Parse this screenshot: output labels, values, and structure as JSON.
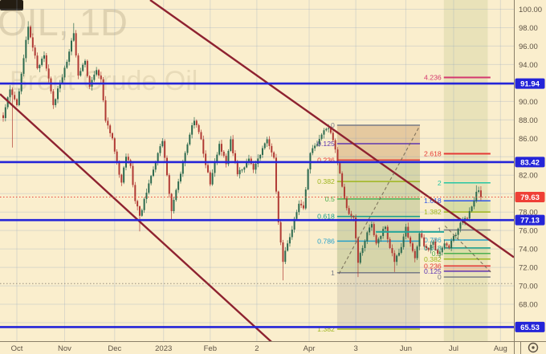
{
  "app": {
    "watermark_line1": "OIL, 1D",
    "watermark_line2": "Brent Crude Oil"
  },
  "colors": {
    "bg": "#faeecd",
    "grid": "rgba(140,160,190,0.28)",
    "up": "#2d6a4f",
    "down": "#b03a34",
    "blue_line": "#2424d8",
    "badge_blue": "#2424d8",
    "badge_red": "#ef4036",
    "maroon": "#8e2230",
    "axis_text": "#5d5244",
    "axis_line": "#8a7f68",
    "dotted_red": "#e8443a",
    "dotted_gray": "#97907e",
    "watermark1": "rgba(90,70,30,0.16)",
    "watermark2": "rgba(90,70,30,0.11)",
    "corner_logo": "#241d12",
    "badge_text": "#ffffff"
  },
  "chart_data": {
    "type": "candlestick",
    "symbol": "OIL",
    "interval": "1D",
    "name": "Brent Crude Oil",
    "ylim": [
      64,
      101
    ],
    "bars": 211,
    "grid_prices": [
      100,
      98,
      96,
      94,
      92,
      90,
      88,
      86,
      84,
      82,
      80,
      78,
      76,
      74,
      72,
      70,
      68,
      66
    ],
    "price_ticks": [
      {
        "label": "100.00",
        "price": 100
      },
      {
        "label": "98.00",
        "price": 98
      },
      {
        "label": "96.00",
        "price": 96
      },
      {
        "label": "94.00",
        "price": 94
      },
      {
        "label": "90.00",
        "price": 90
      },
      {
        "label": "88.00",
        "price": 88
      },
      {
        "label": "86.00",
        "price": 86
      },
      {
        "label": "82.00",
        "price": 82
      },
      {
        "label": "78.00",
        "price": 78
      },
      {
        "label": "76.00",
        "price": 76
      },
      {
        "label": "74.00",
        "price": 74
      },
      {
        "label": "72.00",
        "price": 72
      },
      {
        "label": "70.00",
        "price": 70
      },
      {
        "label": "68.00",
        "price": 68
      }
    ],
    "time_ticks": [
      {
        "label": "Oct",
        "bar": 6
      },
      {
        "label": "Nov",
        "bar": 27
      },
      {
        "label": "Dec",
        "bar": 49
      },
      {
        "label": "2023",
        "bar": 70.5
      },
      {
        "label": "Feb",
        "bar": 91
      },
      {
        "label": "2",
        "bar": 111.5
      },
      {
        "label": "Apr",
        "bar": 134.5
      },
      {
        "label": "3",
        "bar": 155
      },
      {
        "label": "Jun",
        "bar": 177
      },
      {
        "label": "Jul",
        "bar": 198
      },
      {
        "label": "Aug",
        "bar": 218.6
      }
    ],
    "last_price": 79.63,
    "last_price_direction": "down",
    "gray_dotted_price": 70.25,
    "blue_price_lines": [
      {
        "label": "91.94",
        "price": 91.94
      },
      {
        "label": "83.42",
        "price": 83.42
      },
      {
        "label": "77.13",
        "price": 77.13
      },
      {
        "label": "65.53",
        "price": 65.53
      }
    ],
    "close_anchors": [
      [
        0,
        88.2
      ],
      [
        3,
        91.3
      ],
      [
        6,
        89.6
      ],
      [
        11,
        98.1
      ],
      [
        15,
        93.6
      ],
      [
        18,
        95.0
      ],
      [
        22,
        89.6
      ],
      [
        25,
        92.0
      ],
      [
        28,
        94.3
      ],
      [
        31,
        97.4
      ],
      [
        33,
        92.8
      ],
      [
        36,
        94.4
      ],
      [
        38,
        91.6
      ],
      [
        41,
        93.4
      ],
      [
        43,
        92.4
      ],
      [
        45,
        87.9
      ],
      [
        48,
        86.0
      ],
      [
        50,
        83.4
      ],
      [
        52,
        81.2
      ],
      [
        54,
        84.0
      ],
      [
        56,
        83.0
      ],
      [
        58,
        79.2
      ],
      [
        60,
        77.6
      ],
      [
        63,
        80.1
      ],
      [
        66,
        82.6
      ],
      [
        68,
        84.4
      ],
      [
        70,
        85.7
      ],
      [
        72,
        82.0
      ],
      [
        74,
        78.1
      ],
      [
        76,
        80.4
      ],
      [
        79,
        83.4
      ],
      [
        82,
        86.4
      ],
      [
        84,
        87.9
      ],
      [
        87,
        85.9
      ],
      [
        89,
        83.1
      ],
      [
        91,
        81.0
      ],
      [
        93,
        83.4
      ],
      [
        95,
        85.4
      ],
      [
        98,
        83.2
      ],
      [
        100,
        85.9
      ],
      [
        103,
        82.1
      ],
      [
        105,
        82.6
      ],
      [
        108,
        83.8
      ],
      [
        110,
        82.6
      ],
      [
        113,
        84.2
      ],
      [
        116,
        85.9
      ],
      [
        119,
        83.9
      ],
      [
        121,
        76.9
      ],
      [
        123,
        72.6
      ],
      [
        125,
        74.6
      ],
      [
        127,
        76.1
      ],
      [
        130,
        78.9
      ],
      [
        132,
        78.4
      ],
      [
        135,
        84.4
      ],
      [
        137,
        85.2
      ],
      [
        140,
        86.4
      ],
      [
        143,
        87.1
      ],
      [
        145,
        85.8
      ],
      [
        148,
        82.2
      ],
      [
        150,
        79.5
      ],
      [
        152,
        77.8
      ],
      [
        154,
        77.4
      ],
      [
        156,
        72.5
      ],
      [
        158,
        74.1
      ],
      [
        160,
        75.8
      ],
      [
        162,
        76.7
      ],
      [
        164,
        74.6
      ],
      [
        166,
        75.4
      ],
      [
        168,
        76.4
      ],
      [
        170,
        74.1
      ],
      [
        172,
        72.6
      ],
      [
        175,
        74.2
      ],
      [
        177,
        76.4
      ],
      [
        179,
        74.6
      ],
      [
        181,
        73.0
      ],
      [
        183,
        75.7
      ],
      [
        185,
        74.3
      ],
      [
        187,
        73.9
      ],
      [
        189,
        74.8
      ],
      [
        191,
        73.5
      ],
      [
        194,
        74.6
      ],
      [
        196,
        74.1
      ],
      [
        198,
        75.4
      ],
      [
        200,
        76.2
      ],
      [
        202,
        77.0
      ],
      [
        204,
        77.3
      ],
      [
        206,
        78.6
      ],
      [
        208,
        80.2
      ],
      [
        209,
        80.35
      ],
      [
        210,
        79.63
      ]
    ],
    "wick_overrides": [
      {
        "bar": 4,
        "low": 85.0
      },
      {
        "bar": 11,
        "high": 98.7
      },
      {
        "bar": 31,
        "high": 98.5
      },
      {
        "bar": 60,
        "low": 75.9
      },
      {
        "bar": 74,
        "low": 77.2
      },
      {
        "bar": 84,
        "high": 88.3
      },
      {
        "bar": 123,
        "low": 70.6
      },
      {
        "bar": 156,
        "low": 70.95
      },
      {
        "bar": 172,
        "low": 71.5
      },
      {
        "bar": 208,
        "high": 80.9
      }
    ],
    "regions": [
      {
        "name": "fib-main-box",
        "from_bar": 146.8,
        "to_bar": 183.2,
        "top_price": 87.42,
        "bottom_price": 65.31,
        "color": "rgba(120,115,105,0.16)"
      },
      {
        "name": "fib-main-band-orange",
        "from_bar": 146.8,
        "to_bar": 183.2,
        "top_price": 87.42,
        "bottom_price": 83.64,
        "color": "rgba(235,140,40,0.20)"
      },
      {
        "name": "fib-main-band-green",
        "from_bar": 146.8,
        "to_bar": 183.2,
        "top_price": 83.64,
        "bottom_price": 71.42,
        "color": "rgba(140,195,75,0.16)"
      },
      {
        "name": "highlight-column-green",
        "from_bar": 193.7,
        "to_bar": 213,
        "top_price": 101,
        "bottom_price": 64,
        "color": "rgba(150,170,80,0.16)"
      },
      {
        "name": "fib-ext-band-green-1",
        "from_bar": 193.7,
        "to_bar": 214.2,
        "top_price": 79.22,
        "bottom_price": 78.01,
        "color": "rgba(139,195,74,0.18)"
      },
      {
        "name": "fib-ext-band-green-2",
        "from_bar": 193.7,
        "to_bar": 214.2,
        "top_price": 74.11,
        "bottom_price": 72.9,
        "color": "rgba(139,195,74,0.15)"
      },
      {
        "name": "fib-ext-band-red",
        "from_bar": 193.7,
        "to_bar": 214.2,
        "top_price": 72.16,
        "bottom_price": 71.59,
        "color": "rgba(239,83,80,0.18)"
      }
    ],
    "fibs": [
      {
        "name": "fib-retracement-main",
        "from_bar": 146.8,
        "to_bar": 183.2,
        "levels": [
          {
            "v": "0",
            "price": 87.42,
            "color": "#787b86"
          },
          {
            "v": "0.125",
            "price": 85.42,
            "color": "#5e35b1"
          },
          {
            "v": "0.236",
            "price": 83.64,
            "color": "#e53935"
          },
          {
            "v": "0.382",
            "price": 81.31,
            "color": "#9eb51e"
          },
          {
            "v": "0.5",
            "price": 79.42,
            "color": "#4caf50"
          },
          {
            "v": "0.618",
            "price": 77.53,
            "color": "#159e8c"
          },
          {
            "v": "0.786",
            "price": 74.85,
            "color": "#27a0c9"
          },
          {
            "v": "1",
            "price": 71.42,
            "color": "#787b86"
          },
          {
            "v": "1.382",
            "price": 65.31,
            "color": "#9eb51e"
          }
        ]
      },
      {
        "name": "fib-retracement-extension",
        "from_bar": 193.7,
        "to_bar": 214.2,
        "levels": [
          {
            "v": "4.236",
            "price": 92.6,
            "color": "#d4386e"
          },
          {
            "v": "2.618",
            "price": 84.33,
            "color": "#e53935"
          },
          {
            "v": "2",
            "price": 81.17,
            "color": "#26c6a2"
          },
          {
            "v": "1.618",
            "price": 79.22,
            "color": "#2d54e8"
          },
          {
            "v": "1.382",
            "price": 78.01,
            "color": "#9eb51e"
          },
          {
            "v": "1",
            "price": 76.06,
            "color": "#787b86"
          },
          {
            "v": "0.786",
            "price": 74.97,
            "color": "#27a0c9"
          },
          {
            "v": "0.618",
            "price": 74.11,
            "color": "#159e8c"
          },
          {
            "v": "0.5",
            "price": 73.51,
            "color": "#4caf50"
          },
          {
            "v": "0.382",
            "price": 72.9,
            "color": "#9eb51e"
          },
          {
            "v": "0.236",
            "price": 72.16,
            "color": "#e53935"
          },
          {
            "v": "0.125",
            "price": 71.59,
            "color": "#5e35b1"
          },
          {
            "v": "0",
            "price": 70.95,
            "color": "#787b86"
          }
        ]
      }
    ],
    "trend_channel": [
      {
        "name": "trendline-upper",
        "from": {
          "bar": 64.6,
          "price": 101
        },
        "to": {
          "bar": 224.5,
          "price": 73.1
        }
      },
      {
        "name": "trendline-lower",
        "from": {
          "bar": -1.4,
          "price": 90.8
        },
        "to": {
          "bar": 118,
          "price": 63.9
        }
      }
    ],
    "dashed_connectors": [
      {
        "name": "fib-main-connector",
        "from": {
          "bar": 147.6,
          "price": 71.3
        },
        "to": {
          "bar": 183,
          "price": 87.3
        }
      },
      {
        "name": "fib-ext-connector",
        "from": {
          "bar": 194.2,
          "price": 76.5
        },
        "to": {
          "bar": 214.5,
          "price": 71.45
        }
      }
    ],
    "support_segment": {
      "price": 75.85,
      "from_bar": 163.8,
      "to_bar": 193.8,
      "color": "#26a69a"
    }
  },
  "axes": {
    "gear_icon": "gear"
  }
}
